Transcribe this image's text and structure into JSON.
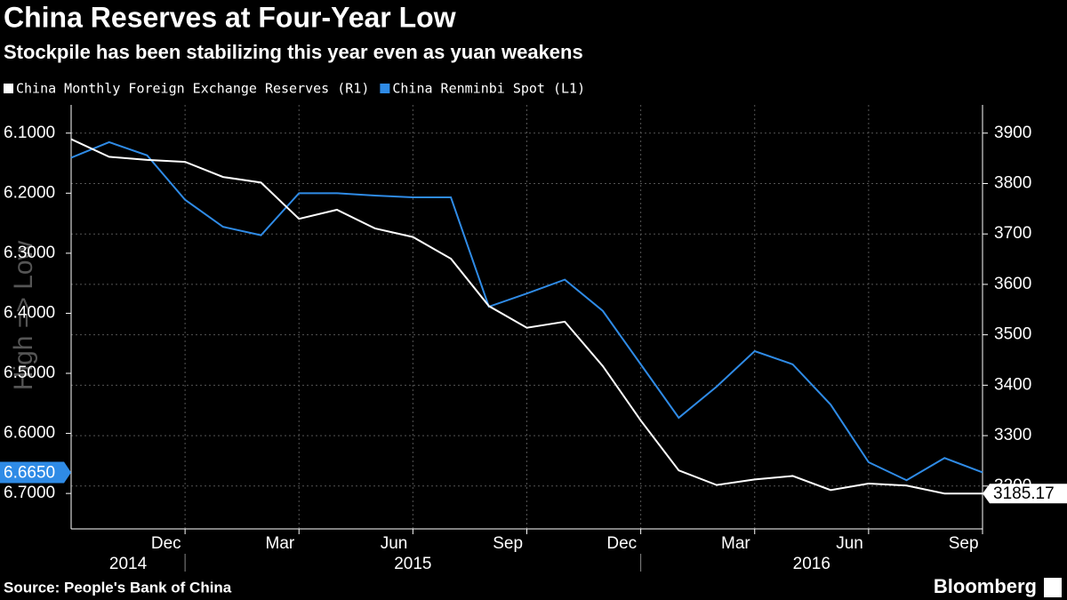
{
  "chart_data": {
    "type": "line",
    "title": "China Reserves at Four-Year Low",
    "subtitle": "Stockpile has been stabilizing this year even as yuan weakens",
    "y_axis_label": "High => Low",
    "source": "Source: People's Bank of China",
    "brand": "Bloomberg",
    "xlim": [
      "2014-09",
      "2016-09"
    ],
    "xticks": [
      {
        "value": "2014-12",
        "label": "Dec"
      },
      {
        "value": "2015-03",
        "label": "Mar"
      },
      {
        "value": "2015-06",
        "label": "Jun"
      },
      {
        "value": "2015-09",
        "label": "Sep"
      },
      {
        "value": "2015-12",
        "label": "Dec"
      },
      {
        "value": "2016-03",
        "label": "Mar"
      },
      {
        "value": "2016-06",
        "label": "Jun"
      },
      {
        "value": "2016-09",
        "label": "Sep"
      }
    ],
    "years": [
      "2014",
      "2015",
      "2016"
    ],
    "ylim": [
      6.759,
      6.053
    ],
    "yticks": [
      {
        "value": 6.1,
        "label": "6.1000"
      },
      {
        "value": 6.2,
        "label": "6.2000"
      },
      {
        "value": 6.3,
        "label": "6.3000"
      },
      {
        "value": 6.4,
        "label": "6.4000"
      },
      {
        "value": 6.5,
        "label": "6.5000"
      },
      {
        "value": 6.6,
        "label": "6.6000"
      },
      {
        "value": 6.7,
        "label": "6.7000"
      }
    ],
    "y2lim": [
      3115,
      3956
    ],
    "y2ticks": [
      3200,
      3300,
      3400,
      3500,
      3600,
      3700,
      3800,
      3900
    ],
    "grid": true,
    "series": [
      {
        "name": "China Monthly Foreign Exchange Reserves (R1)",
        "color": "#ffffff",
        "axis": "y2",
        "x": [
          "2014-09",
          "2014-10",
          "2014-11",
          "2014-12",
          "2015-01",
          "2015-02",
          "2015-03",
          "2015-04",
          "2015-05",
          "2015-06",
          "2015-07",
          "2015-08",
          "2015-09",
          "2015-10",
          "2015-11",
          "2015-12",
          "2016-01",
          "2016-02",
          "2016-03",
          "2016-04",
          "2016-05",
          "2016-06",
          "2016-07",
          "2016-08",
          "2016-09"
        ],
        "values": [
          3888,
          3853,
          3847,
          3843,
          3813,
          3802,
          3730,
          3748,
          3711,
          3694,
          3651,
          3557,
          3514,
          3526,
          3438,
          3330,
          3231,
          3202,
          3213,
          3220,
          3192,
          3205,
          3201,
          3185.17,
          3185.17
        ]
      },
      {
        "name": "China Renminbi Spot (L1)",
        "color": "#2f8be6",
        "x": [
          "2014-09",
          "2014-10",
          "2014-11",
          "2014-12",
          "2015-01",
          "2015-02",
          "2015-03",
          "2015-04",
          "2015-05",
          "2015-06",
          "2015-07",
          "2015-08",
          "2015-09",
          "2015-10",
          "2015-11",
          "2015-12",
          "2016-01",
          "2016-02",
          "2016-03",
          "2016-04",
          "2016-05",
          "2016-06",
          "2016-07",
          "2016-08",
          "2016-09"
        ],
        "values": [
          6.141,
          6.115,
          6.137,
          6.211,
          6.256,
          6.27,
          6.2,
          6.2,
          6.204,
          6.207,
          6.207,
          6.389,
          6.367,
          6.344,
          6.396,
          6.485,
          6.574,
          6.522,
          6.463,
          6.485,
          6.552,
          6.648,
          6.678,
          6.641,
          6.665
        ],
        "value_labels": [
          null,
          null,
          null,
          null,
          null,
          null,
          null,
          null,
          null,
          null,
          null,
          null,
          null,
          null,
          null,
          null,
          null,
          null,
          null,
          null,
          null,
          null,
          null,
          null,
          "6.6650"
        ]
      }
    ]
  }
}
